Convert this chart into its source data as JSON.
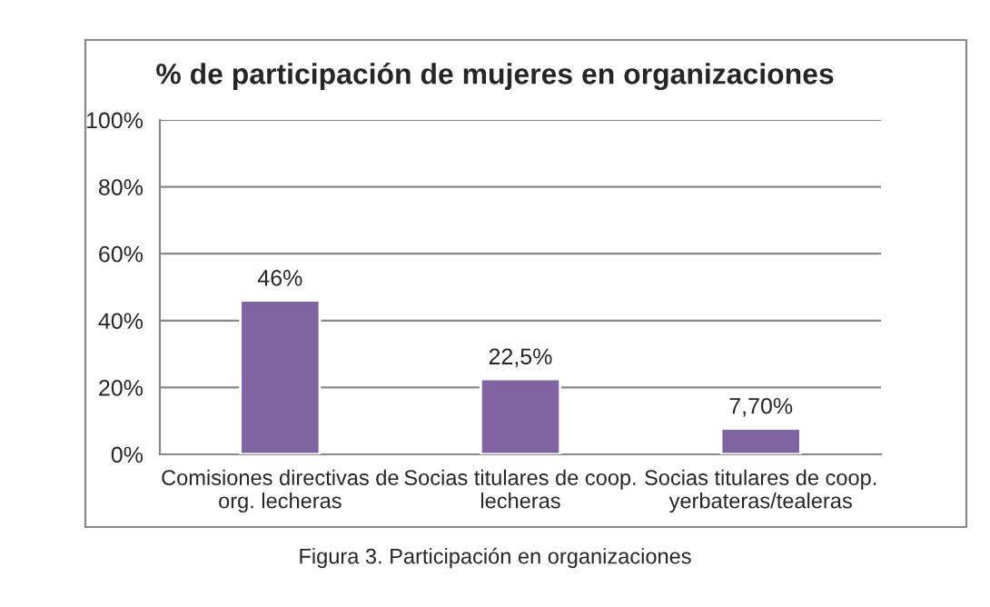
{
  "chart_data": {
    "type": "bar",
    "title": "% de participación de mujeres en organizaciones",
    "categories": [
      "Comisiones directivas de\norg. lecheras",
      "Socias titulares de coop.\nlecheras",
      "Socias titulares de coop.\nyerbateras/tealeras"
    ],
    "values": [
      46,
      22.5,
      7.7
    ],
    "color": "#8064a2",
    "value_labels": [
      "46%",
      "22,5%",
      "7,70%"
    ],
    "ylim": [
      0,
      100
    ],
    "yticks": [
      {
        "value": 0,
        "label": "0%"
      },
      {
        "value": 20,
        "label": "20%"
      },
      {
        "value": 40,
        "label": "40%"
      },
      {
        "value": 60,
        "label": "60%"
      },
      {
        "value": 80,
        "label": "80%"
      },
      {
        "value": 100,
        "label": "100%"
      }
    ],
    "grid": "y",
    "annotations": [
      "Figura 3. Participación en organizaciones"
    ]
  }
}
